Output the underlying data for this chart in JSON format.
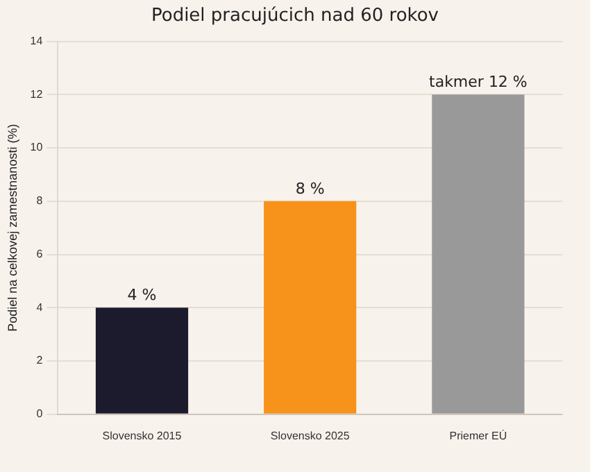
{
  "chart_data": {
    "type": "bar",
    "title": "Podiel pracujúcich nad 60 rokov",
    "ylabel": "Podiel na celkovej zamestnanosti (%)",
    "categories": [
      "Slovensko 2015",
      "Slovensko 2025",
      "Priemer EÚ"
    ],
    "values": [
      4,
      8,
      12
    ],
    "colors": [
      "#1c1b2e",
      "#f7931a",
      "#999999"
    ],
    "value_labels": [
      "4 %",
      "8 %",
      "takmer 12 %"
    ],
    "ylim": [
      0,
      14
    ],
    "yticks": [
      0,
      2,
      4,
      6,
      8,
      10,
      12,
      14
    ],
    "grid": "y"
  }
}
